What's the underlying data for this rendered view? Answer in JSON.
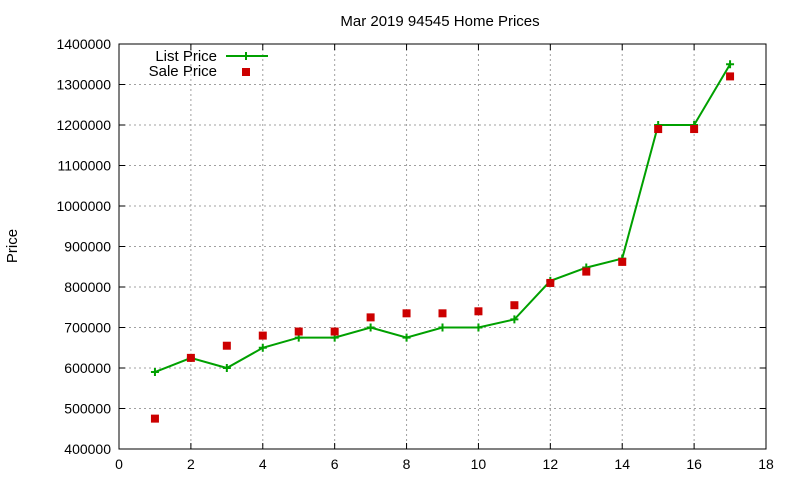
{
  "chart_data": {
    "type": "line",
    "title": "Mar 2019 94545 Home Prices",
    "xlabel": "",
    "ylabel": "Price",
    "xlim": [
      0,
      18
    ],
    "ylim": [
      400000,
      1400000
    ],
    "x_ticks": [
      "0",
      "2",
      "4",
      "6",
      "8",
      "10",
      "12",
      "14",
      "16",
      "18"
    ],
    "y_ticks": [
      "400000",
      "500000",
      "600000",
      "700000",
      "800000",
      "900000",
      "1000000",
      "1100000",
      "1200000",
      "1300000",
      "1400000"
    ],
    "grid": true,
    "legend_position": "top-left",
    "series": [
      {
        "name": "List Price",
        "style": "line-with-plus-markers",
        "color": "#00a000",
        "x": [
          1,
          2,
          3,
          4,
          5,
          6,
          7,
          8,
          9,
          10,
          11,
          12,
          13,
          14,
          15,
          16,
          17
        ],
        "values": [
          590000,
          625000,
          600000,
          650000,
          675000,
          675000,
          700000,
          675000,
          700000,
          700000,
          720000,
          815000,
          848000,
          870000,
          1200000,
          1200000,
          1350000
        ]
      },
      {
        "name": "Sale Price",
        "style": "square-markers",
        "color": "#cc0000",
        "x": [
          1,
          2,
          3,
          4,
          5,
          6,
          7,
          8,
          9,
          10,
          11,
          12,
          13,
          14,
          15,
          16,
          17
        ],
        "values": [
          475000,
          625000,
          655000,
          680000,
          690000,
          690000,
          725000,
          735000,
          735000,
          740000,
          755000,
          810000,
          838000,
          862000,
          1190000,
          1190000,
          1320000
        ]
      }
    ]
  }
}
